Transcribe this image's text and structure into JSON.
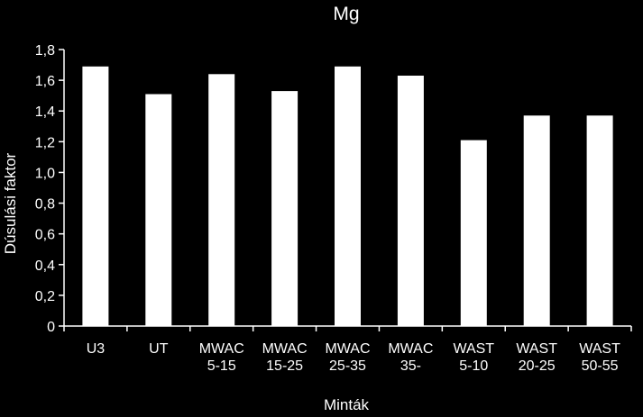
{
  "colors": {
    "background": "#000000",
    "bar": "#ffffff",
    "axis": "#ffffff",
    "text": "#ffffff"
  },
  "chart_data": {
    "type": "bar",
    "title": "Mg",
    "xlabel": "Minták",
    "ylabel": "Dúsulási faktor",
    "ylim": [
      0,
      1.8
    ],
    "yticks": [
      "0",
      "0,2",
      "0,4",
      "0,6",
      "0,8",
      "1,0",
      "1,2",
      "1,4",
      "1,6",
      "1,8"
    ],
    "grid": false,
    "legend": "none",
    "categories": [
      [
        "U3"
      ],
      [
        "UT"
      ],
      [
        "MWAC",
        "5-15"
      ],
      [
        "MWAC",
        "15-25"
      ],
      [
        "MWAC",
        "25-35"
      ],
      [
        "MWAC",
        "35-"
      ],
      [
        "WAST",
        "5-10"
      ],
      [
        "WAST",
        "20-25"
      ],
      [
        "WAST",
        "50-55"
      ]
    ],
    "values": [
      1.69,
      1.51,
      1.64,
      1.53,
      1.69,
      1.63,
      1.21,
      1.37,
      1.37
    ]
  }
}
